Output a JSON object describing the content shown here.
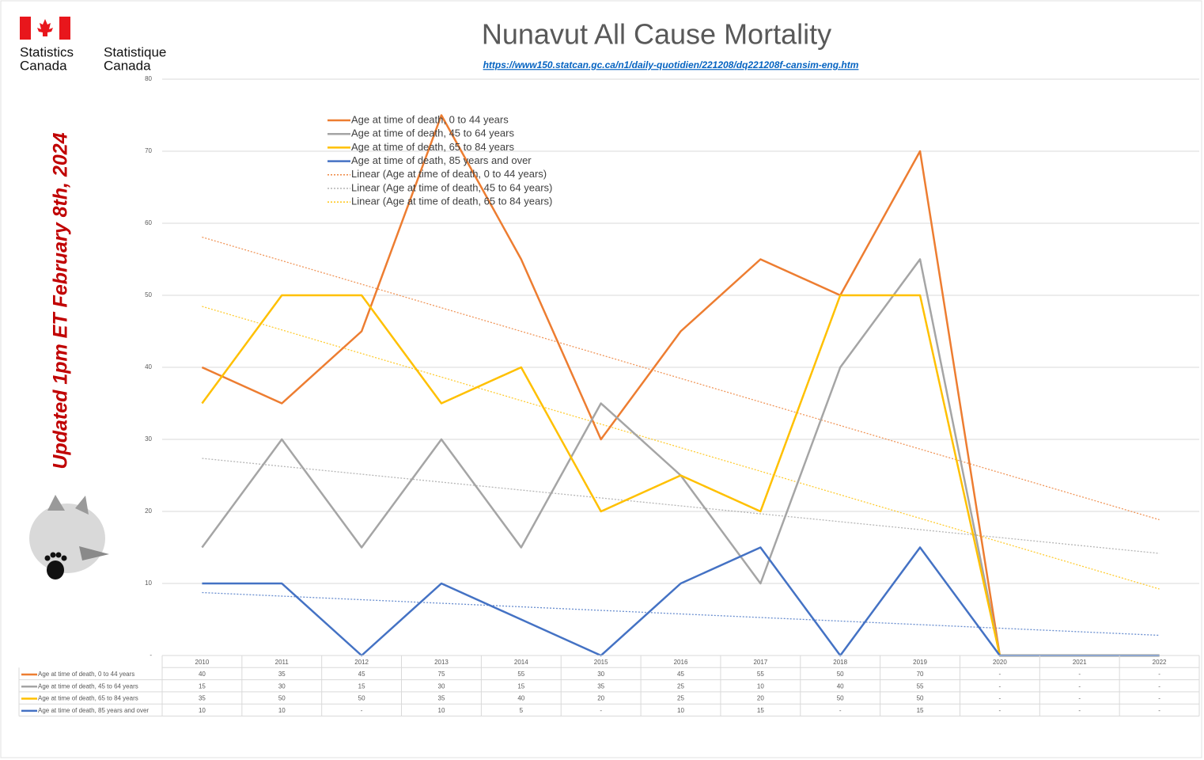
{
  "logo": {
    "en": [
      "Statistics",
      "Canada"
    ],
    "fr": [
      "Statistique",
      "Canada"
    ]
  },
  "update_note": "Updated 1pm ET February 8th, 2024",
  "chart_data": {
    "type": "line",
    "title": "Nunavut All Cause Mortality",
    "subtitle": "https://www150.statcan.gc.ca/n1/daily-quotidien/221208/dq221208f-cansim-eng.htm",
    "categories": [
      "2010",
      "2011",
      "2012",
      "2013",
      "2014",
      "2015",
      "2016",
      "2017",
      "2018",
      "2019",
      "2020",
      "2021",
      "2022"
    ],
    "series": [
      {
        "name": "Age at time of death, 0 to 44 years",
        "color": "#ed7d31",
        "values": [
          40,
          35,
          45,
          75,
          55,
          30,
          45,
          55,
          50,
          70,
          0,
          0,
          0
        ],
        "value_labels": [
          "40",
          "35",
          "45",
          "75",
          "55",
          "30",
          "45",
          "55",
          "50",
          "70",
          "-",
          "-",
          "-"
        ]
      },
      {
        "name": "Age at time of death, 45 to 64 years",
        "color": "#a5a5a5",
        "values": [
          15,
          30,
          15,
          30,
          15,
          35,
          25,
          10,
          40,
          55,
          0,
          0,
          0
        ],
        "value_labels": [
          "15",
          "30",
          "15",
          "30",
          "15",
          "35",
          "25",
          "10",
          "40",
          "55",
          "-",
          "-",
          "-"
        ]
      },
      {
        "name": "Age at time of death, 65 to 84 years",
        "color": "#ffc000",
        "values": [
          35,
          50,
          50,
          35,
          40,
          20,
          25,
          20,
          50,
          50,
          0,
          0,
          0
        ],
        "value_labels": [
          "35",
          "50",
          "50",
          "35",
          "40",
          "20",
          "25",
          "20",
          "50",
          "50",
          "-",
          "-",
          "-"
        ]
      },
      {
        "name": "Age at time of death, 85 years and over",
        "color": "#4472c4",
        "values": [
          10,
          10,
          0,
          10,
          5,
          0,
          10,
          15,
          0,
          15,
          0,
          0,
          0
        ],
        "value_labels": [
          "10",
          "10",
          "-",
          "10",
          "5",
          "-",
          "10",
          "15",
          "-",
          "15",
          "-",
          "-",
          "-"
        ]
      }
    ],
    "trendlines": [
      {
        "series": 0,
        "name": "Linear (Age at time of death, 0 to 44 years)"
      },
      {
        "series": 1,
        "name": "Linear (Age at time of death, 45 to 64 years)"
      },
      {
        "series": 2,
        "name": "Linear (Age at time of death, 65 to 84 years)"
      },
      {
        "series": 3
      }
    ],
    "ylim": [
      0,
      80
    ],
    "yticks": [
      {
        "value": 0,
        "label": "-"
      },
      10,
      20,
      30,
      40,
      50,
      60,
      70,
      80
    ],
    "grid": true,
    "legend": "top-left",
    "data_table": true
  }
}
